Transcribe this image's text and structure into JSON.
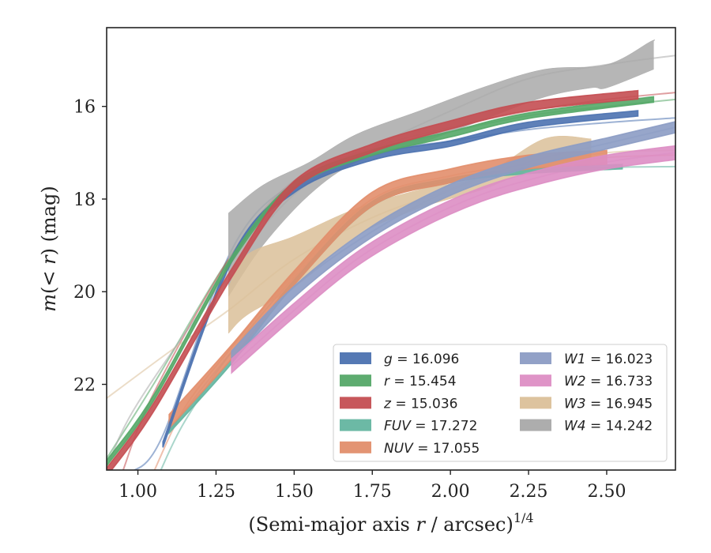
{
  "chart_data": {
    "type": "line",
    "xlabel": "(Semi-major axis r / arcsec)^{1/4}",
    "xlabel_parts": {
      "main": "(Semi-major axis ",
      "var": "r",
      "rest": " / arcsec)",
      "sup": "1/4"
    },
    "ylabel": "m(<r) (mag)",
    "ylabel_parts": {
      "pre": "m",
      "open": "(",
      "lt": "<",
      "var": "r",
      "close": ")",
      "unit": " (mag)"
    },
    "xlim": [
      0.9,
      2.72
    ],
    "ylim": [
      23.85,
      14.3
    ],
    "y_inverted": true,
    "xticks": [
      1.0,
      1.25,
      1.5,
      1.75,
      2.0,
      2.25,
      2.5
    ],
    "xtick_labels": [
      "1.00",
      "1.25",
      "1.50",
      "1.75",
      "2.00",
      "2.25",
      "2.50"
    ],
    "yticks": [
      16,
      18,
      20,
      22
    ],
    "ytick_labels": [
      "16",
      "18",
      "20",
      "22"
    ],
    "grid": false,
    "legend_placement": "lower-right",
    "legend_columns": 2,
    "series": [
      {
        "key": "g",
        "name": "g = 16.096",
        "label_var": "g",
        "label_val": "16.096",
        "color": "#4c72b0",
        "x": [
          1.08,
          1.3,
          1.5,
          1.75,
          2.0,
          2.25,
          2.6
        ],
        "y": [
          23.3,
          19.3,
          17.8,
          17.1,
          16.8,
          16.4,
          16.15
        ],
        "band": 0.06,
        "ext_x": [
          0.98,
          1.08,
          1.3,
          1.5,
          1.75,
          2.0,
          2.25,
          2.5,
          2.72
        ],
        "ext_y": [
          23.9,
          23.1,
          19.1,
          17.65,
          17.0,
          16.75,
          16.5,
          16.35,
          16.25
        ]
      },
      {
        "key": "r",
        "name": "r = 15.454",
        "label_var": "r",
        "label_val": "15.454",
        "color": "#55a868",
        "x": [
          0.9,
          1.05,
          1.3,
          1.5,
          1.75,
          2.0,
          2.25,
          2.65
        ],
        "y": [
          23.7,
          22.3,
          19.3,
          17.7,
          17.0,
          16.6,
          16.2,
          15.85
        ],
        "band": 0.06,
        "ext_x": [
          0.9,
          1.05,
          1.3,
          1.5,
          1.75,
          2.0,
          2.25,
          2.5,
          2.72
        ],
        "ext_y": [
          23.6,
          22.0,
          19.2,
          17.7,
          17.0,
          16.55,
          16.2,
          16.0,
          15.85
        ]
      },
      {
        "key": "z",
        "name": "z = 15.036",
        "label_var": "z",
        "label_val": "15.036",
        "color": "#c44e52",
        "x": [
          0.9,
          1.05,
          1.3,
          1.5,
          1.75,
          2.0,
          2.25,
          2.6
        ],
        "y": [
          23.9,
          22.5,
          19.6,
          17.7,
          16.9,
          16.4,
          16.0,
          15.75
        ],
        "band": 0.09,
        "ext_x": [
          0.95,
          1.05,
          1.3,
          1.5,
          1.75,
          2.0,
          2.25,
          2.5,
          2.72
        ],
        "ext_y": [
          23.9,
          22.2,
          19.2,
          17.6,
          16.9,
          16.45,
          16.1,
          15.85,
          15.7
        ]
      },
      {
        "key": "FUV",
        "name": "FUV = 17.272",
        "label_var": "FUV",
        "label_val": "17.272",
        "color": "#64b5a0",
        "x": [
          1.1,
          1.3,
          1.5,
          1.75,
          2.0,
          2.25,
          2.55
        ],
        "y": [
          23.0,
          21.5,
          19.8,
          18.1,
          17.6,
          17.4,
          17.3
        ],
        "band": 0.05,
        "ext_x": [
          1.07,
          1.15,
          1.3,
          1.5,
          1.75,
          2.0,
          2.25,
          2.5,
          2.72
        ],
        "ext_y": [
          23.9,
          22.8,
          21.3,
          19.7,
          18.1,
          17.6,
          17.4,
          17.32,
          17.3
        ]
      },
      {
        "key": "NUV",
        "name": "NUV = 17.055",
        "label_var": "NUV",
        "label_val": "17.055",
        "color": "#e28e6b",
        "x": [
          1.1,
          1.3,
          1.5,
          1.75,
          2.0,
          2.25,
          2.5
        ],
        "y": [
          22.8,
          21.3,
          19.7,
          18.0,
          17.5,
          17.2,
          17.1
        ],
        "band": 0.15,
        "ext_x": [
          1.05,
          1.15,
          1.3,
          1.5,
          1.75,
          2.0,
          2.25,
          2.5,
          2.72
        ],
        "ext_y": [
          23.9,
          22.5,
          21.2,
          19.6,
          18.0,
          17.5,
          17.25,
          17.1,
          17.05
        ]
      },
      {
        "key": "W1",
        "name": "W1 = 16.023",
        "label_var": "W1",
        "label_val": "16.023",
        "color": "#8c9cc4",
        "x": [
          1.3,
          1.5,
          1.75,
          2.0,
          2.25,
          2.5,
          2.72
        ],
        "y": [
          21.4,
          20.0,
          18.7,
          17.8,
          17.2,
          16.8,
          16.45
        ],
        "band": 0.12,
        "ext_x": [
          1.1,
          1.3,
          1.5,
          1.75,
          2.0,
          2.25,
          2.5,
          2.72
        ],
        "ext_y": [
          23.0,
          21.3,
          19.9,
          18.7,
          17.8,
          17.2,
          16.8,
          16.45
        ]
      },
      {
        "key": "W2",
        "name": "W2 = 16.733",
        "label_var": "W2",
        "label_val": "16.733",
        "color": "#dd8ec4",
        "x": [
          1.3,
          1.5,
          1.7,
          1.9,
          2.1,
          2.3,
          2.5,
          2.72
        ],
        "y": [
          21.6,
          20.4,
          19.3,
          18.5,
          17.9,
          17.5,
          17.2,
          17.0
        ],
        "band": 0.15,
        "ext_x": [
          1.3,
          1.5,
          1.7,
          1.9,
          2.1,
          2.3,
          2.5,
          2.72
        ],
        "ext_y": [
          21.6,
          20.4,
          19.3,
          18.5,
          17.9,
          17.5,
          17.2,
          17.0
        ]
      },
      {
        "key": "W3",
        "name": "W3 = 16.945",
        "label_var": "W3",
        "label_val": "16.945",
        "color": "#dbc099",
        "upper": [
          [
            1.29,
            19.9
          ],
          [
            1.35,
            19.2
          ],
          [
            1.5,
            18.8
          ],
          [
            1.7,
            18.2
          ],
          [
            1.9,
            17.8
          ],
          [
            2.1,
            17.5
          ],
          [
            2.3,
            16.7
          ],
          [
            2.45,
            16.7
          ]
        ],
        "lower": [
          [
            1.29,
            20.9
          ],
          [
            1.35,
            20.5
          ],
          [
            1.5,
            19.9
          ],
          [
            1.7,
            18.8
          ],
          [
            1.9,
            18.2
          ],
          [
            2.1,
            17.8
          ],
          [
            2.3,
            17.3
          ],
          [
            2.45,
            17.4
          ]
        ],
        "ext_x": [
          0.9,
          1.1,
          1.29,
          1.5,
          1.75,
          2.0,
          2.25,
          2.5,
          2.72
        ],
        "ext_y": [
          22.3,
          21.3,
          20.4,
          19.3,
          18.4,
          17.8,
          17.3,
          17.0,
          16.95
        ]
      },
      {
        "key": "W4",
        "name": "W4 = 14.242",
        "label_var": "W4",
        "label_val": "14.242",
        "color": "#a9a9a9",
        "upper": [
          [
            1.29,
            18.3
          ],
          [
            1.4,
            17.7
          ],
          [
            1.55,
            17.2
          ],
          [
            1.7,
            16.6
          ],
          [
            1.9,
            16.1
          ],
          [
            2.1,
            15.6
          ],
          [
            2.3,
            15.2
          ],
          [
            2.5,
            15.1
          ],
          [
            2.64,
            14.6
          ],
          [
            2.65,
            14.6
          ]
        ],
        "lower": [
          [
            1.29,
            20.1
          ],
          [
            1.4,
            19.0
          ],
          [
            1.55,
            17.9
          ],
          [
            1.7,
            17.2
          ],
          [
            1.9,
            16.8
          ],
          [
            2.1,
            16.3
          ],
          [
            2.3,
            15.8
          ],
          [
            2.45,
            15.6
          ],
          [
            2.5,
            15.6
          ],
          [
            2.65,
            15.2
          ]
        ],
        "ext_x": [
          0.9,
          1.0,
          1.29,
          1.5,
          1.75,
          2.0,
          2.25,
          2.5,
          2.72
        ],
        "ext_y": [
          23.8,
          22.4,
          19.6,
          17.9,
          16.9,
          16.1,
          15.4,
          15.1,
          14.9
        ]
      }
    ]
  }
}
